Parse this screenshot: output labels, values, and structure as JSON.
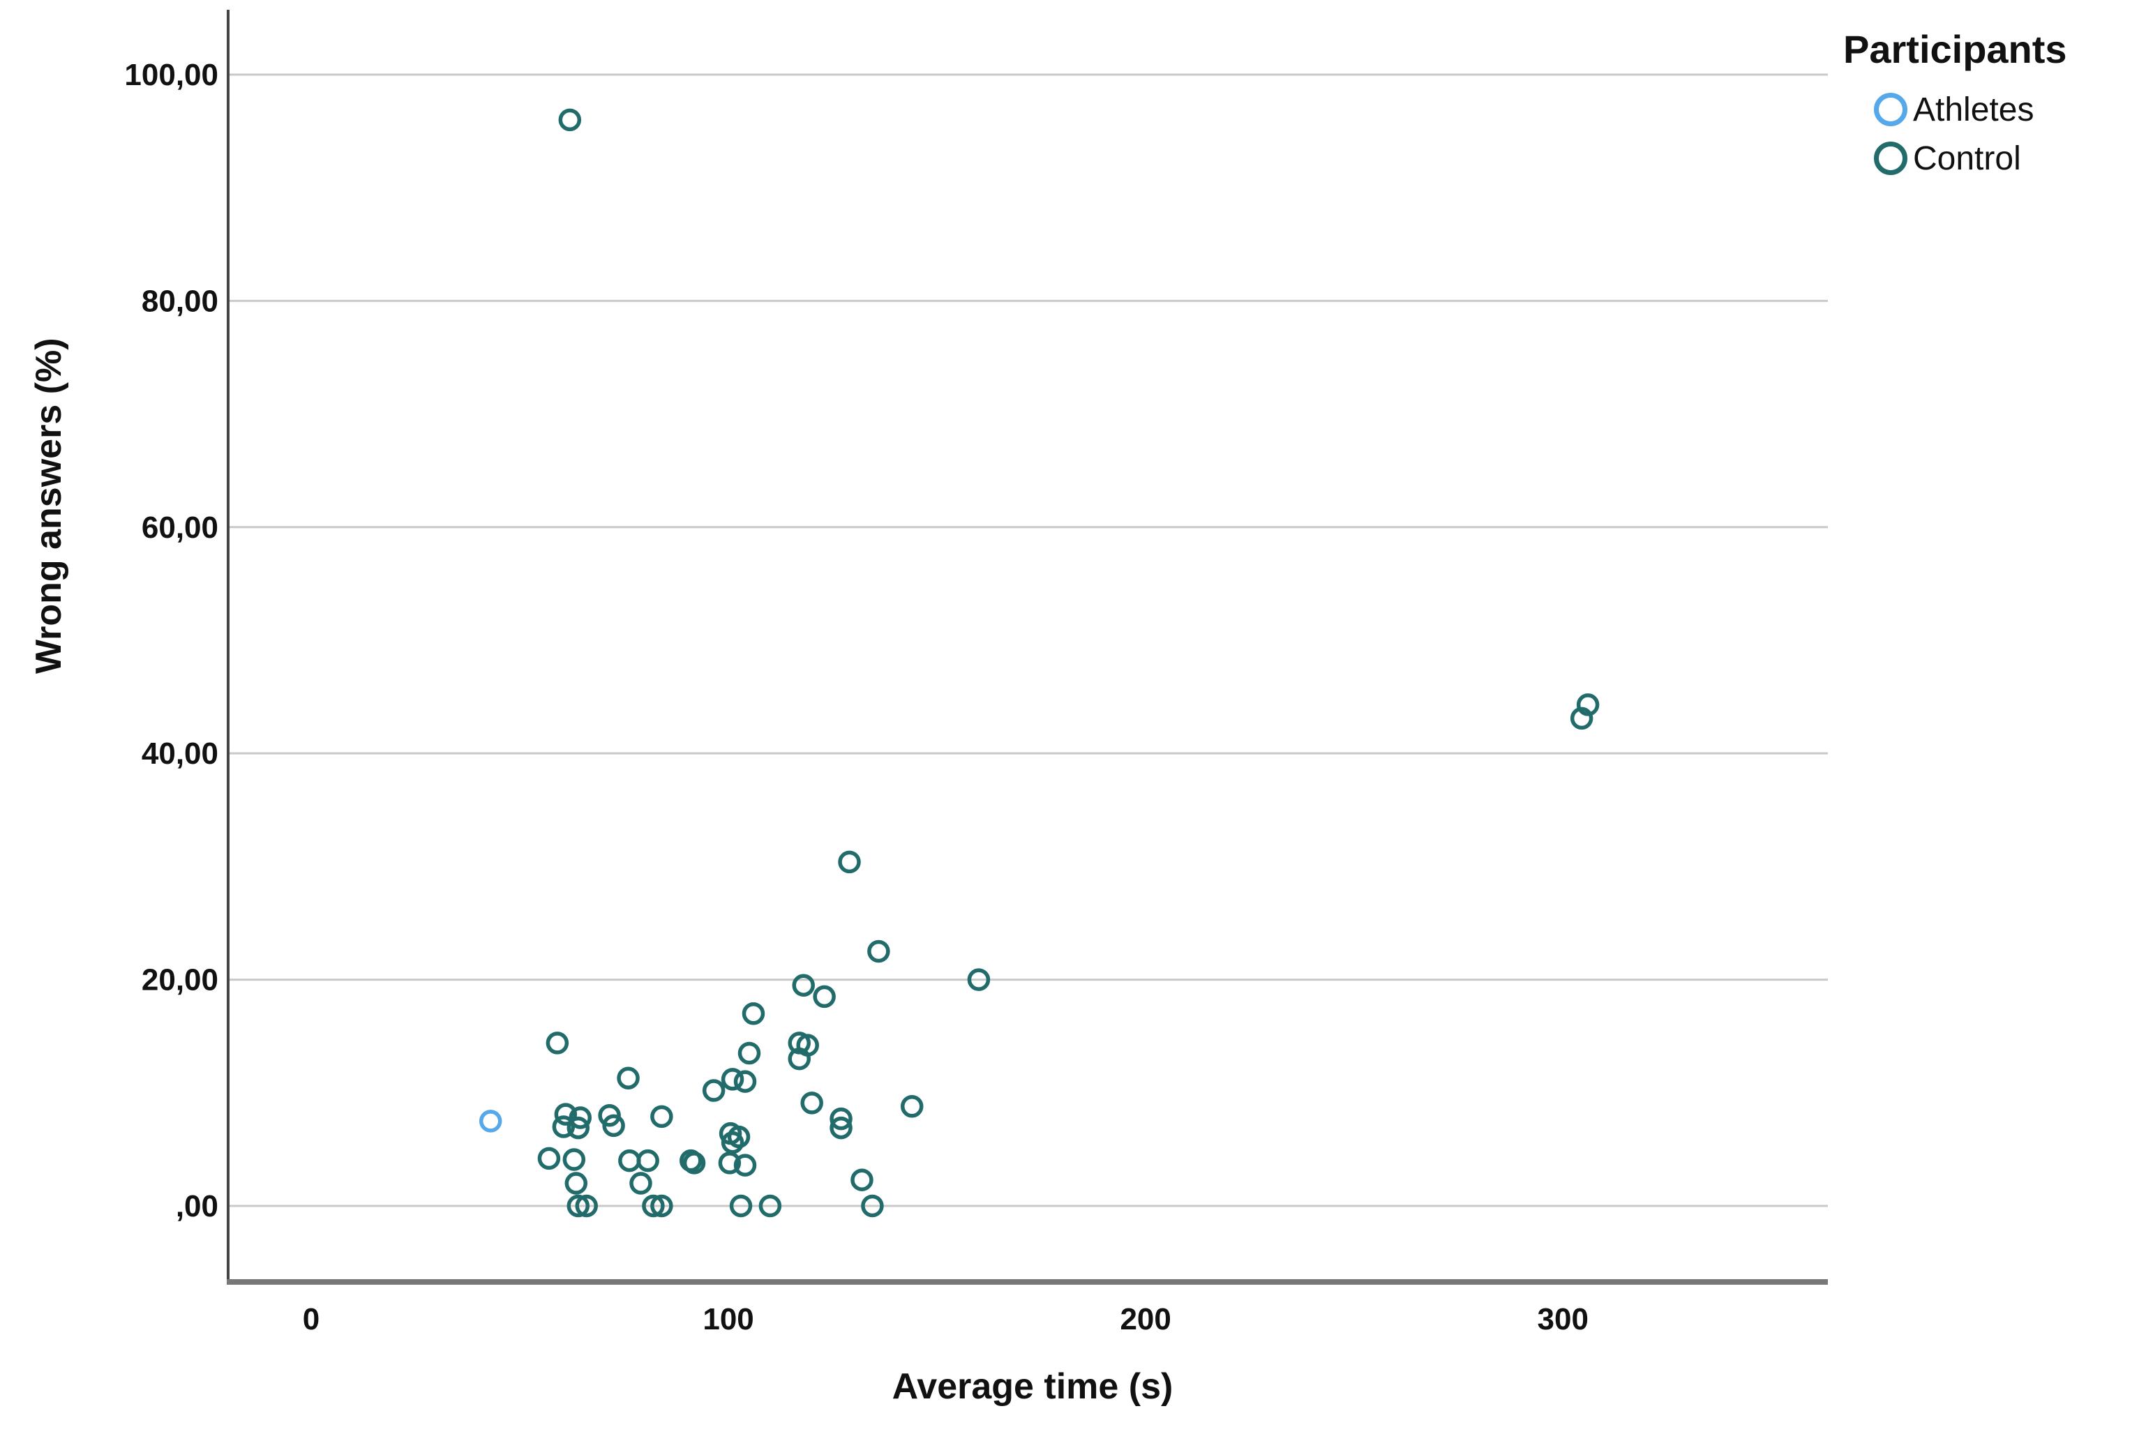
{
  "chart_data": {
    "type": "scatter",
    "title": "",
    "xlabel": "Average time (s)",
    "ylabel": "Wrong answers (%)",
    "xlim": [
      -19.9,
      363.5
    ],
    "ylim": [
      -6.72,
      105.73
    ],
    "x_ticks": [
      0,
      100,
      200,
      300
    ],
    "x_tick_labels": [
      "0",
      "100",
      "200",
      "300"
    ],
    "y_ticks": [
      0,
      20,
      40,
      60,
      80,
      100
    ],
    "y_tick_labels": [
      ",00",
      "20,00",
      "40,00",
      "60,00",
      "80,00",
      "100,00"
    ],
    "grid": "horizontal-only",
    "background": "#ffffff",
    "gridline_color": "#c9c9c9",
    "y_axis_color": "#454545",
    "x_axis_color": "#787878",
    "text_color": "#111111",
    "legend": {
      "title": "Participants",
      "position": "top-right",
      "entries": [
        {
          "label": "Athletes",
          "color": "#55a8ea"
        },
        {
          "label": "Control",
          "color": "#226b6b"
        }
      ]
    },
    "series": [
      {
        "name": "Control",
        "color": "#226b6b",
        "points": [
          [
            62,
            96
          ],
          [
            306,
            44.3
          ],
          [
            304.5,
            43.1
          ],
          [
            129,
            30.4
          ],
          [
            136,
            22.5
          ],
          [
            160,
            20
          ],
          [
            118,
            19.5
          ],
          [
            123,
            18.5
          ],
          [
            106,
            17
          ],
          [
            59,
            14.4
          ],
          [
            117,
            14.4
          ],
          [
            119,
            14.2
          ],
          [
            105,
            13.5
          ],
          [
            117,
            13
          ],
          [
            76,
            11.3
          ],
          [
            101,
            11.2
          ],
          [
            104,
            11
          ],
          [
            96.5,
            10.2
          ],
          [
            120,
            9.1
          ],
          [
            144,
            8.8
          ],
          [
            61,
            8.1
          ],
          [
            64.5,
            7.8
          ],
          [
            71.5,
            8
          ],
          [
            84,
            7.9
          ],
          [
            127,
            7.7
          ],
          [
            60.5,
            7
          ],
          [
            64,
            6.9
          ],
          [
            72.5,
            7.1
          ],
          [
            127,
            6.9
          ],
          [
            100.5,
            6.4
          ],
          [
            102.5,
            6.1
          ],
          [
            101,
            5.6
          ],
          [
            57,
            4.2
          ],
          [
            63,
            4.1
          ],
          [
            76.3,
            4
          ],
          [
            80.7,
            4
          ],
          [
            91,
            4
          ],
          [
            91.8,
            3.8
          ],
          [
            100.3,
            3.8
          ],
          [
            104,
            3.6
          ],
          [
            63.5,
            2
          ],
          [
            79,
            2
          ],
          [
            132,
            2.3
          ],
          [
            64,
            0
          ],
          [
            66,
            0
          ],
          [
            82,
            0
          ],
          [
            84,
            0
          ],
          [
            103,
            0
          ],
          [
            110,
            0
          ],
          [
            134.5,
            0
          ]
        ]
      },
      {
        "name": "Athletes",
        "color": "#55a8ea",
        "points": [
          [
            43,
            7.5
          ]
        ]
      }
    ],
    "marker": {
      "shape": "open-circle",
      "radius_px": 13.5,
      "stroke_px": 5.5
    }
  }
}
